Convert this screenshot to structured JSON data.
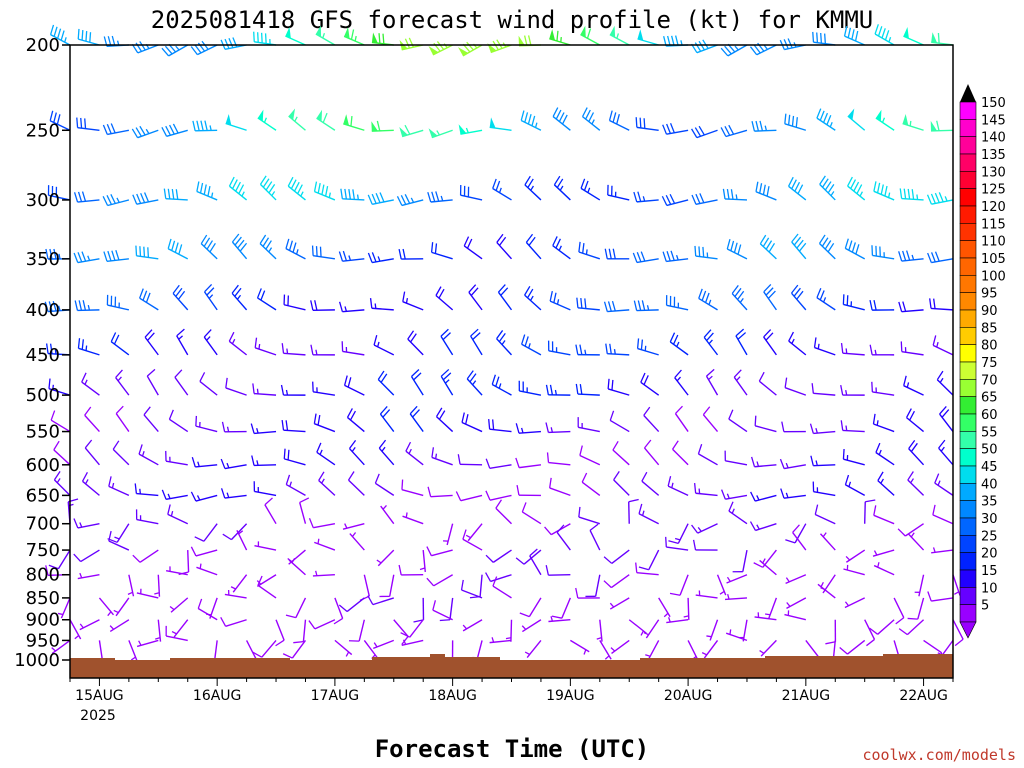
{
  "title": "2025081418 GFS forecast wind profile (kt) for KMMU",
  "credit": "coolwx.com/models",
  "chart_data": {
    "type": "wind-barb-profile",
    "title": "2025081418 GFS forecast wind profile (kt) for KMMU",
    "xlabel": "Forecast Time (UTC)",
    "ylabel": "",
    "x_ticks": [
      "15AUG",
      "16AUG",
      "17AUG",
      "18AUG",
      "19AUG",
      "20AUG",
      "21AUG",
      "22AUG"
    ],
    "x_first_sublabel": "2025",
    "y_ticks": [
      200,
      250,
      300,
      350,
      400,
      450,
      500,
      550,
      600,
      650,
      700,
      750,
      800,
      850,
      900,
      950,
      1000
    ],
    "y_range": [
      200,
      1000
    ],
    "y_scale": "log-pressure",
    "time_range_hours": [
      -6,
      174
    ],
    "time_step_hours": 6,
    "levels": [
      200,
      250,
      300,
      350,
      400,
      450,
      500,
      550,
      600,
      650,
      700,
      750,
      800,
      850,
      900,
      950
    ],
    "colorbar": {
      "units": "kt",
      "labels": [
        150,
        145,
        140,
        135,
        130,
        125,
        120,
        115,
        110,
        105,
        100,
        95,
        90,
        85,
        80,
        75,
        70,
        65,
        60,
        55,
        50,
        45,
        40,
        35,
        30,
        25,
        20,
        15,
        10,
        5
      ],
      "colors": [
        "#ff00ff",
        "#ff00cc",
        "#ff0099",
        "#ff0066",
        "#ff0033",
        "#ff0000",
        "#ff1a00",
        "#ff3300",
        "#ff5500",
        "#ff6600",
        "#ff7700",
        "#ff8800",
        "#ffaa00",
        "#ffcc00",
        "#ffff00",
        "#ccff33",
        "#99ff33",
        "#33ee33",
        "#33ff66",
        "#33ffaa",
        "#00ffcc",
        "#00ddee",
        "#00aaff",
        "#0088ff",
        "#0066ff",
        "#0044ff",
        "#0022ff",
        "#2200ff",
        "#6600ff",
        "#9900ff"
      ]
    },
    "profile": [
      {
        "level": 200,
        "dir": 270,
        "speed": 55
      },
      {
        "level": 250,
        "dir": 280,
        "speed": 45
      },
      {
        "level": 300,
        "dir": 285,
        "speed": 35
      },
      {
        "level": 350,
        "dir": 290,
        "speed": 30
      },
      {
        "level": 400,
        "dir": 295,
        "speed": 25
      },
      {
        "level": 450,
        "dir": 300,
        "speed": 20
      },
      {
        "level": 500,
        "dir": 300,
        "speed": 18
      },
      {
        "level": 550,
        "dir": 295,
        "speed": 15
      },
      {
        "level": 600,
        "dir": 290,
        "speed": 13
      },
      {
        "level": 650,
        "dir": 285,
        "speed": 12
      },
      {
        "level": 700,
        "dir": 275,
        "speed": 10
      },
      {
        "level": 750,
        "dir": 260,
        "speed": 9
      },
      {
        "level": 800,
        "dir": 240,
        "speed": 8
      },
      {
        "level": 850,
        "dir": 230,
        "speed": 8
      },
      {
        "level": 900,
        "dir": 215,
        "speed": 7
      },
      {
        "level": 950,
        "dir": 200,
        "speed": 6
      }
    ]
  }
}
